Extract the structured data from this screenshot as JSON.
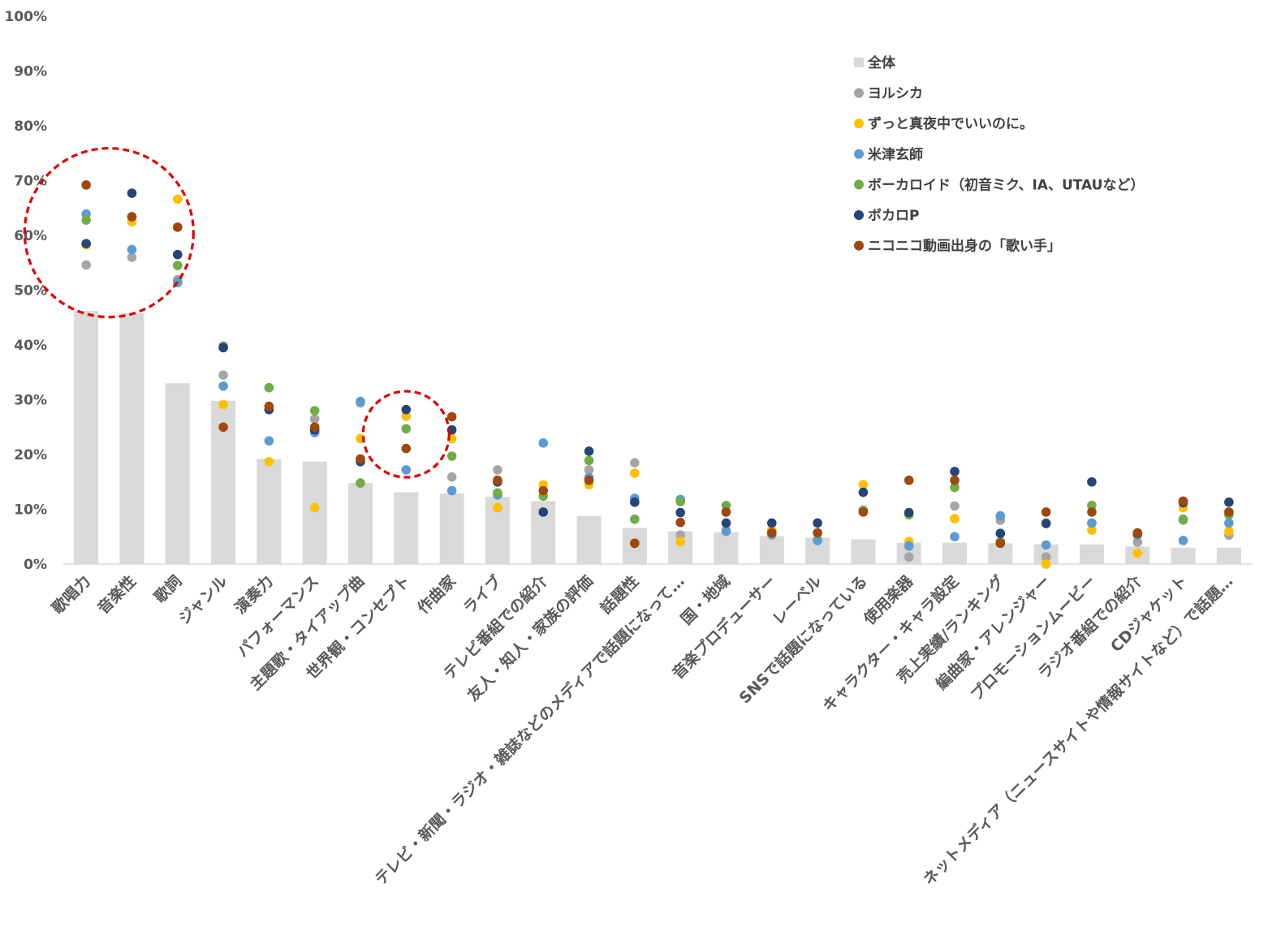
{
  "chart_data": {
    "type": "bar",
    "title": "",
    "xlabel": "",
    "ylabel": "",
    "ylim": [
      0,
      100
    ],
    "y_ticks": [
      "0%",
      "10%",
      "20%",
      "30%",
      "40%",
      "50%",
      "60%",
      "70%",
      "80%",
      "90%",
      "100%"
    ],
    "grid": false,
    "legend_position": "top-right",
    "categories": [
      "歌唱力",
      "音楽性",
      "歌詞",
      "ジャンル",
      "演奏力",
      "パフォーマンス",
      "主題歌・タイアップ曲",
      "世界観・コンセプト",
      "作曲家",
      "ライブ",
      "テレビ番組での紹介",
      "友人・知人・家族の評価",
      "話題性",
      "テレビ・新聞・ラジオ・雑誌などのメディアで話題になって…",
      "国・地域",
      "音楽プロデューサー",
      "レーベル",
      "SNSで話題になっている",
      "使用楽器",
      "キャラクター・キャラ設定",
      "売上実績/ランキング",
      "編曲家・アレンジャー",
      "プロモーションムービー",
      "ラジオ番組での紹介",
      "CDジャケット",
      "ネットメディア（ニュースサイトや情報サイトなど）で話題…"
    ],
    "series": [
      {
        "name": "全体",
        "kind": "bar",
        "color": "#d9d9d9",
        "values": [
          46.2,
          45.8,
          33.0,
          29.8,
          19.2,
          18.7,
          14.8,
          13.1,
          12.9,
          12.3,
          11.5,
          8.8,
          6.6,
          6.0,
          5.8,
          5.1,
          4.8,
          4.5,
          3.9,
          3.9,
          3.8,
          3.6,
          3.6,
          3.2,
          3.0,
          3.0
        ]
      },
      {
        "name": "ヨルシカ",
        "kind": "dot",
        "color": "#a5a5a5",
        "values": [
          54.6,
          56.0,
          51.9,
          34.5,
          28.2,
          26.5,
          29.4,
          27.0,
          15.9,
          17.2,
          9.5,
          17.2,
          18.5,
          5.3,
          6.0,
          5.3,
          4.5,
          9.8,
          1.3,
          10.6,
          8.0,
          1.3,
          7.5,
          4.0,
          8.0,
          5.3
        ]
      },
      {
        "name": "ずっと真夜中でいいのに。",
        "kind": "dot",
        "color": "#ffc000",
        "values": [
          58.3,
          62.5,
          66.6,
          29.1,
          18.7,
          10.3,
          22.9,
          27.0,
          22.9,
          10.3,
          14.5,
          14.5,
          16.6,
          4.1,
          6.2,
          6.2,
          4.5,
          14.5,
          4.1,
          8.3,
          4.1,
          0.0,
          6.2,
          2.0,
          10.3,
          6.0
        ]
      },
      {
        "name": "米津玄師",
        "kind": "dot",
        "color": "#5b9bd5",
        "values": [
          63.9,
          57.4,
          51.4,
          32.5,
          22.5,
          24.0,
          29.7,
          17.2,
          13.4,
          12.6,
          22.1,
          15.8,
          12.0,
          11.8,
          6.0,
          5.5,
          4.3,
          9.8,
          3.3,
          5.0,
          8.8,
          3.5,
          7.5,
          5.3,
          4.3,
          7.5
        ]
      },
      {
        "name": "ボーカロイド（初音ミク、IA、UTAUなど）",
        "kind": "dot",
        "color": "#70ad47",
        "values": [
          62.8,
          63.4,
          54.5,
          39.8,
          32.2,
          28.0,
          14.8,
          24.7,
          19.7,
          13.0,
          12.4,
          18.9,
          8.2,
          11.4,
          10.7,
          5.7,
          5.7,
          9.8,
          9.0,
          14.0,
          4.1,
          7.5,
          10.7,
          5.5,
          8.2,
          9.0
        ]
      },
      {
        "name": "ボカロP",
        "kind": "dot",
        "color": "#264478",
        "values": [
          58.5,
          67.7,
          56.5,
          39.5,
          28.2,
          24.5,
          18.7,
          28.2,
          24.5,
          15.0,
          9.5,
          20.6,
          11.3,
          9.4,
          7.5,
          7.5,
          7.5,
          13.1,
          9.4,
          16.9,
          5.6,
          7.4,
          15.0,
          5.6,
          11.2,
          11.3
        ]
      },
      {
        "name": "ニコニコ動画出身の「歌い手」",
        "kind": "dot",
        "color": "#9e480e",
        "values": [
          69.2,
          63.4,
          61.5,
          25.0,
          28.8,
          25.0,
          19.2,
          21.1,
          26.9,
          15.3,
          13.4,
          15.3,
          3.8,
          7.6,
          9.5,
          5.7,
          5.7,
          9.5,
          15.3,
          15.3,
          3.8,
          9.5,
          9.5,
          5.7,
          11.5,
          9.5
        ]
      }
    ],
    "annotations": [
      {
        "type": "dashed-circle",
        "color": "#e00000",
        "around_categories": [
          "歌唱力",
          "音楽性"
        ],
        "y_center": 60.5
      },
      {
        "type": "dashed-circle",
        "color": "#e00000",
        "around_categories": [
          "世界観・コンセプト"
        ],
        "y_center": 23.7
      }
    ]
  }
}
